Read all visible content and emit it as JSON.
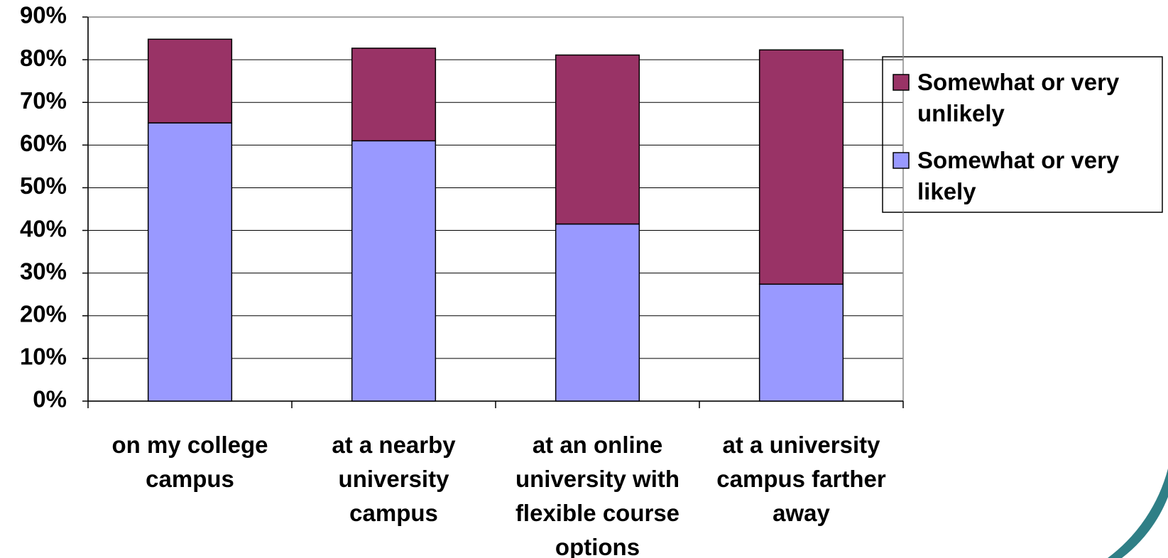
{
  "chart_data": {
    "type": "stacked_bar",
    "categories": [
      "on my college campus",
      "at a nearby university campus",
      "at an online university with flexible course options",
      "at a university campus farther away"
    ],
    "series": [
      {
        "name": "Somewhat or very likely",
        "color": "#9999ff",
        "values": [
          65.2,
          61.0,
          41.5,
          27.4
        ]
      },
      {
        "name": "Somewhat or very unlikely",
        "color": "#993366",
        "values": [
          19.6,
          21.7,
          39.6,
          54.9
        ]
      }
    ],
    "ylim": [
      0,
      90
    ],
    "yticks": [
      {
        "value": 0,
        "label": "0%"
      },
      {
        "value": 10,
        "label": "10%"
      },
      {
        "value": 20,
        "label": "20%"
      },
      {
        "value": 30,
        "label": "30%"
      },
      {
        "value": 40,
        "label": "40%"
      },
      {
        "value": 50,
        "label": "50%"
      },
      {
        "value": 60,
        "label": "60%"
      },
      {
        "value": 70,
        "label": "70%"
      },
      {
        "value": 80,
        "label": "80%"
      },
      {
        "value": 90,
        "label": "90%"
      }
    ],
    "grid": true,
    "legend": "right"
  }
}
